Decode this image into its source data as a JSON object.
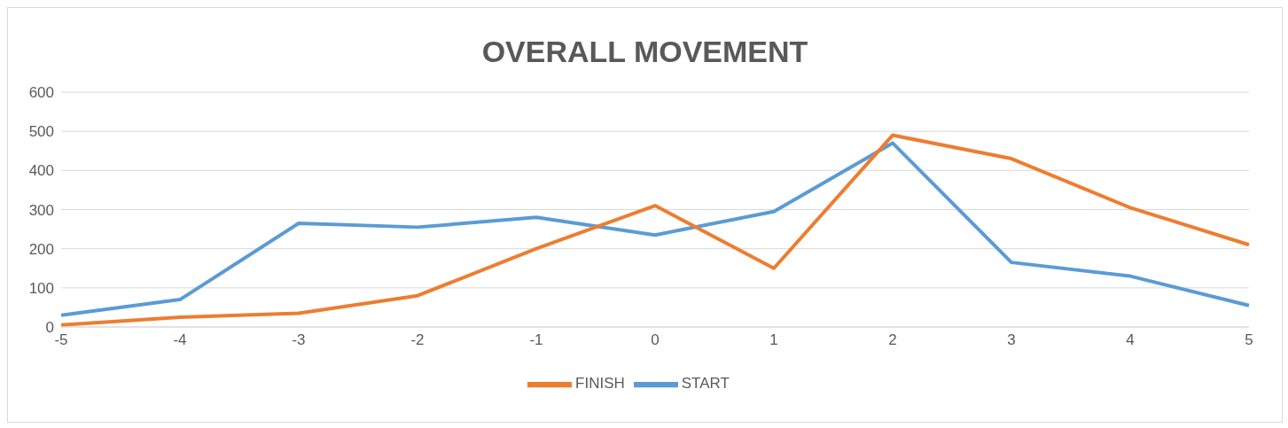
{
  "chart_data": {
    "type": "line",
    "title": "OVERALL MOVEMENT",
    "categories": [
      "-5",
      "-4",
      "-3",
      "-2",
      "-1",
      "0",
      "1",
      "2",
      "3",
      "4",
      "5"
    ],
    "series": [
      {
        "name": "START",
        "color": "#5b9bd5",
        "values": [
          30,
          70,
          265,
          255,
          280,
          235,
          295,
          470,
          165,
          130,
          55
        ]
      },
      {
        "name": "FINISH",
        "color": "#ed7d31",
        "values": [
          5,
          25,
          35,
          80,
          200,
          310,
          150,
          490,
          430,
          305,
          210
        ]
      }
    ],
    "ylim": [
      0,
      600
    ],
    "yticks": [
      0,
      100,
      200,
      300,
      400,
      500,
      600
    ],
    "grid": "y",
    "legend": "bottom",
    "marker": "none",
    "line_style": "solid"
  }
}
